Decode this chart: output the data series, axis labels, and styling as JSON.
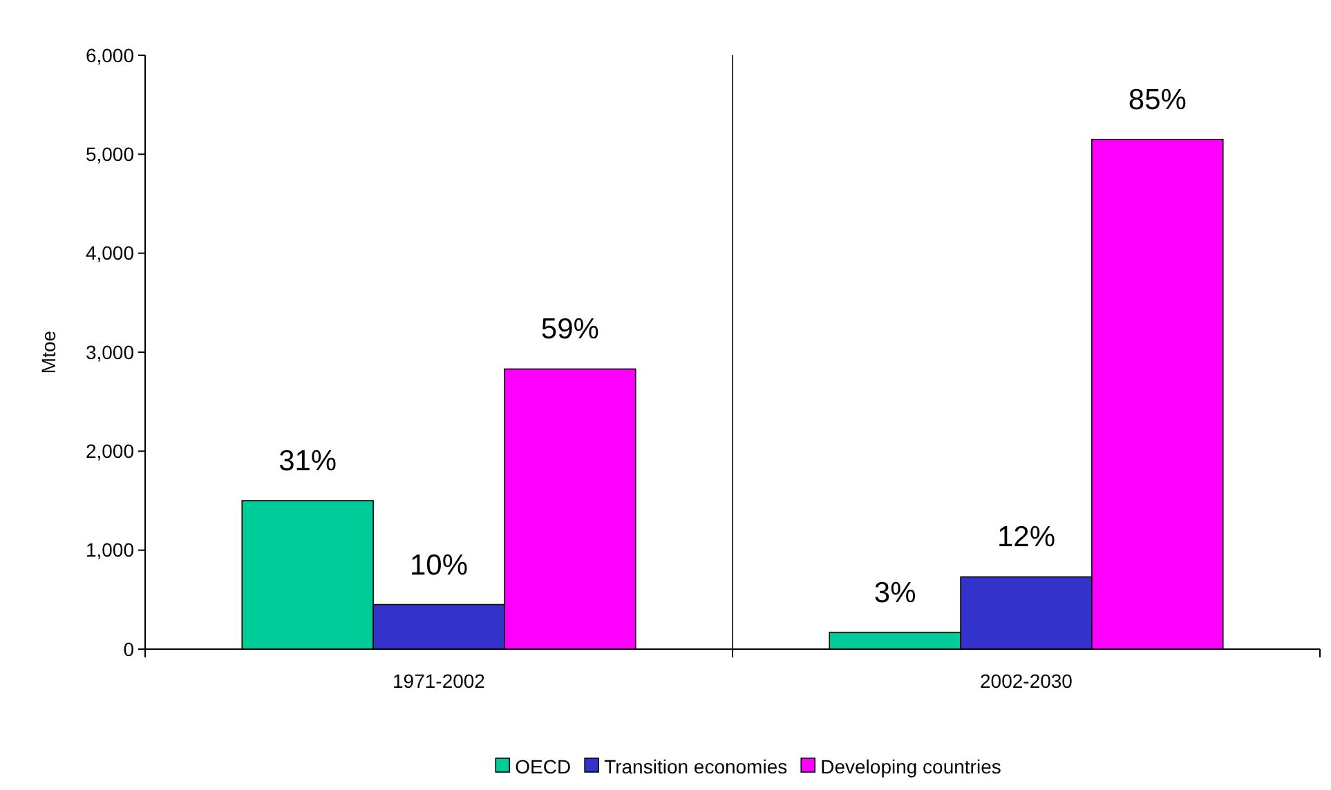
{
  "chart_data": {
    "type": "bar",
    "ylabel": "Mtoe",
    "categories": [
      "1971-2002",
      "2002-2030"
    ],
    "series": [
      {
        "name": "OECD",
        "color": "#00cc99",
        "values": [
          1500,
          170
        ]
      },
      {
        "name": "Transition economies",
        "color": "#3333cc",
        "values": [
          450,
          730
        ]
      },
      {
        "name": "Developing countries",
        "color": "#ff00ff",
        "values": [
          2830,
          5150
        ]
      }
    ],
    "annotations": [
      "31%",
      "10%",
      "59%",
      "3%",
      "12%",
      "85%"
    ],
    "ylim": [
      0,
      6000
    ],
    "yticks": [
      {
        "value": 0,
        "label": "0"
      },
      {
        "value": 1000,
        "label": "1,000"
      },
      {
        "value": 2000,
        "label": "2,000"
      },
      {
        "value": 3000,
        "label": "3,000"
      },
      {
        "value": 4000,
        "label": "4,000"
      },
      {
        "value": 5000,
        "label": "5,000"
      },
      {
        "value": 6000,
        "label": "6,000"
      }
    ],
    "grid": "x",
    "legend": "bottom"
  }
}
